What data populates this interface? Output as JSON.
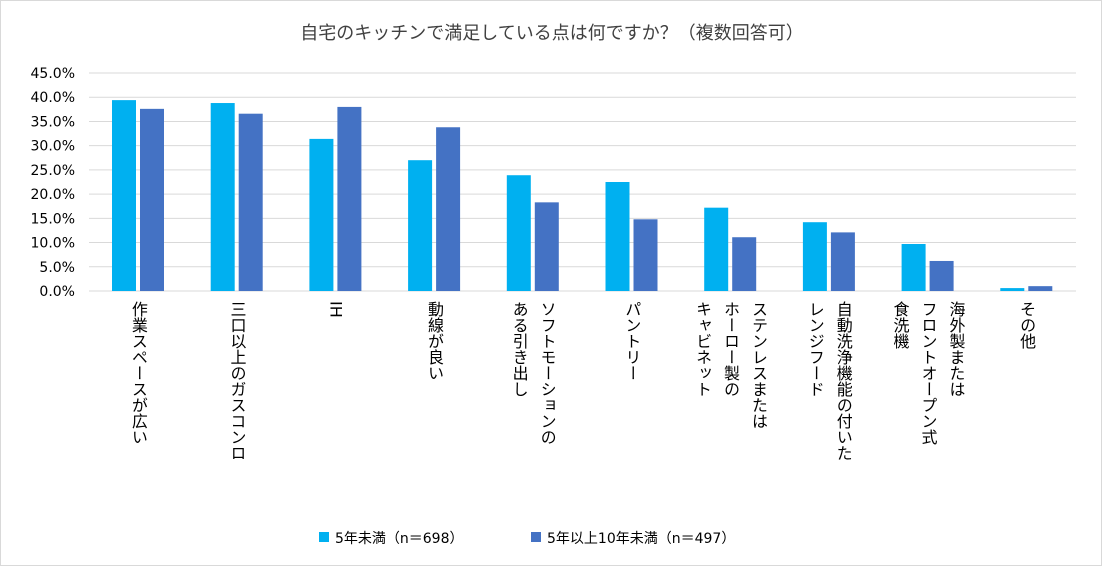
{
  "chart_data": {
    "type": "bar",
    "title": "自宅のキッチンで満足している点は何ですか？（複数回答可）",
    "categories": [
      [
        "作業スペースが広い"
      ],
      [
        "三口以上のガスコンロ"
      ],
      [
        "IH"
      ],
      [
        "動線が良い"
      ],
      [
        "ソフトモーションの",
        "ある引き出し"
      ],
      [
        "パントリー"
      ],
      [
        "ステンレスまたは",
        "ホーロー製の",
        "キャビネット"
      ],
      [
        "自動洗浄機能の付いた",
        "レンジフード"
      ],
      [
        "海外製または",
        "フロントオープン式",
        "食洗機"
      ],
      [
        "その他"
      ]
    ],
    "series": [
      {
        "name": "5年未満（n＝698）",
        "color": "#00b0f0",
        "values": [
          39.4,
          38.8,
          31.4,
          27.0,
          23.9,
          22.5,
          17.2,
          14.2,
          9.7,
          0.6
        ]
      },
      {
        "name": "5年以上10年未満（n＝497）",
        "color": "#4472c4",
        "values": [
          37.6,
          36.6,
          38.0,
          33.8,
          18.3,
          14.8,
          11.1,
          12.1,
          6.2,
          1.0
        ]
      }
    ],
    "ylim": [
      0,
      45
    ],
    "yticks": [
      "0.0%",
      "5.0%",
      "10.0%",
      "15.0%",
      "20.0%",
      "25.0%",
      "30.0%",
      "35.0%",
      "40.0%",
      "45.0%"
    ],
    "grid": true,
    "legend": "bottom-center"
  }
}
